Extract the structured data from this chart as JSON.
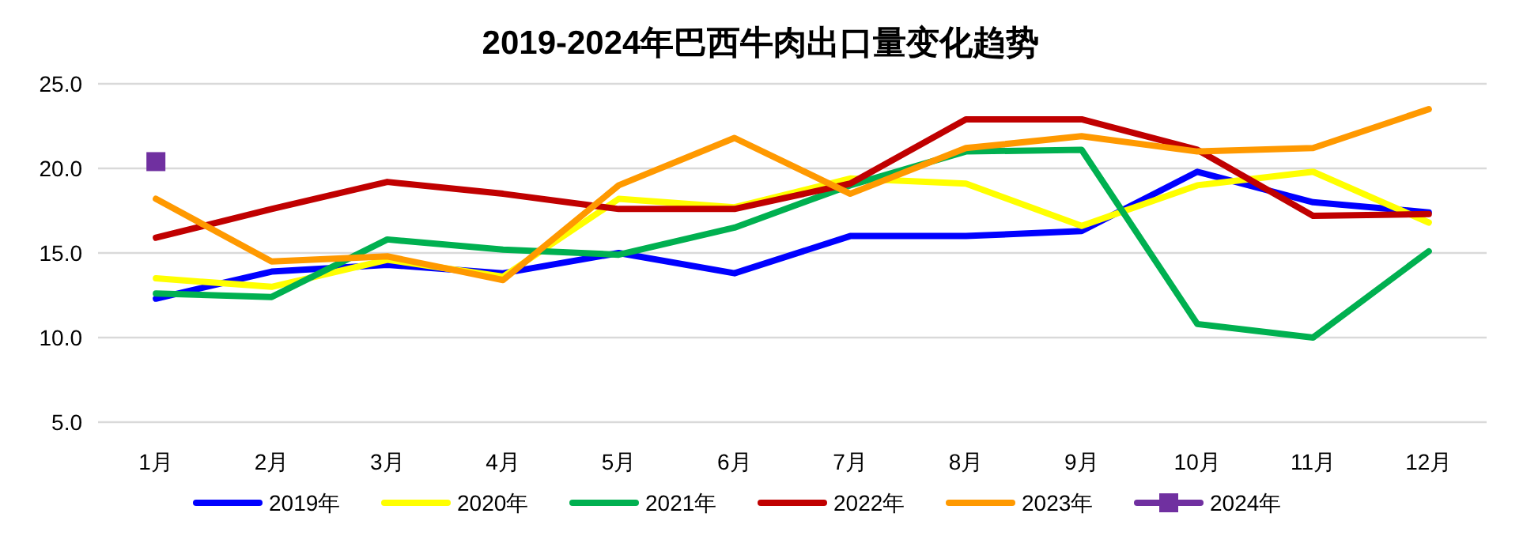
{
  "chart_data": {
    "type": "line",
    "title": "2019-2024年巴西牛肉出口量变化趋势",
    "categories": [
      "1月",
      "2月",
      "3月",
      "4月",
      "5月",
      "6月",
      "7月",
      "8月",
      "9月",
      "10月",
      "11月",
      "12月"
    ],
    "series": [
      {
        "name": "2019年",
        "color": "#0000ff",
        "values": [
          12.3,
          13.9,
          14.3,
          13.8,
          15.0,
          13.8,
          16.0,
          16.0,
          16.3,
          19.8,
          18.0,
          17.4
        ]
      },
      {
        "name": "2020年",
        "color": "#ffff00",
        "values": [
          13.5,
          13.0,
          14.6,
          13.6,
          18.2,
          17.7,
          19.4,
          19.1,
          16.6,
          19.0,
          19.8,
          16.8
        ]
      },
      {
        "name": "2021年",
        "color": "#00b050",
        "values": [
          12.6,
          12.4,
          15.8,
          15.2,
          14.9,
          16.5,
          19.0,
          21.0,
          21.1,
          10.8,
          10.0,
          15.1
        ]
      },
      {
        "name": "2022年",
        "color": "#c00000",
        "values": [
          15.9,
          17.6,
          19.2,
          18.5,
          17.6,
          17.6,
          19.1,
          22.9,
          22.9,
          21.1,
          17.2,
          17.3
        ]
      },
      {
        "name": "2023年",
        "color": "#ff9900",
        "values": [
          18.2,
          14.5,
          14.8,
          13.4,
          19.0,
          21.8,
          18.5,
          21.2,
          21.9,
          21.0,
          21.2,
          23.5
        ]
      },
      {
        "name": "2024年",
        "color": "#7030a0",
        "marker": "square",
        "values": [
          20.4,
          null,
          null,
          null,
          null,
          null,
          null,
          null,
          null,
          null,
          null,
          null
        ]
      }
    ],
    "ylim": [
      5,
      25
    ],
    "yticks": [
      {
        "value": 5,
        "label": "5.0"
      },
      {
        "value": 10,
        "label": "10.0"
      },
      {
        "value": 15,
        "label": "15.0"
      },
      {
        "value": 20,
        "label": "20.0"
      },
      {
        "value": 25,
        "label": "25.0"
      }
    ],
    "grid": "y",
    "legend": "bottom",
    "marker": "none",
    "line_style": "solid"
  }
}
